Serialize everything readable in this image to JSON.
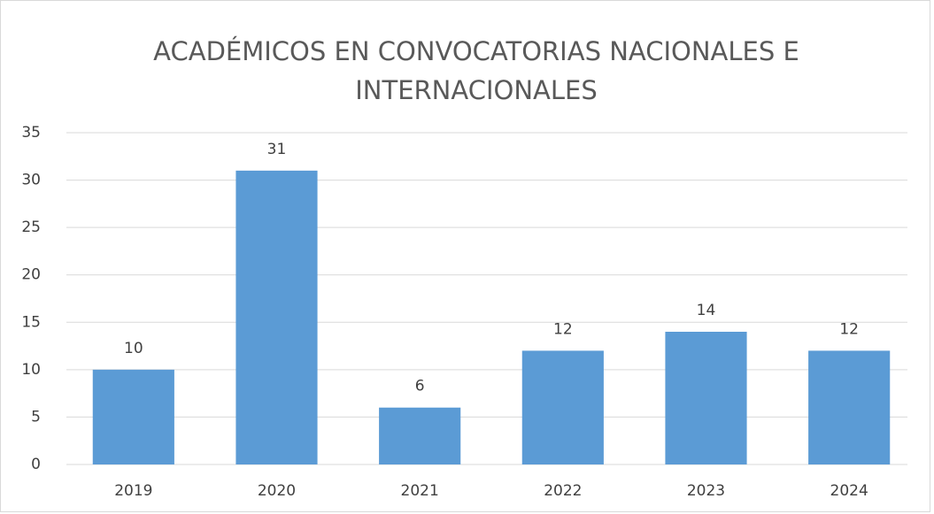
{
  "chart_data": {
    "type": "bar",
    "title": "ACADÉMICOS EN CONVOCATORIAS NACIONALES E INTERNACIONALES",
    "categories": [
      "2019",
      "2020",
      "2021",
      "2022",
      "2023",
      "2024"
    ],
    "values": [
      10,
      31,
      6,
      12,
      14,
      12
    ],
    "color": "#5b9bd5",
    "ylim": [
      0,
      35
    ],
    "yticks": [
      0,
      5,
      10,
      15,
      20,
      25,
      30,
      35
    ],
    "grid": true,
    "data_labels": true
  }
}
